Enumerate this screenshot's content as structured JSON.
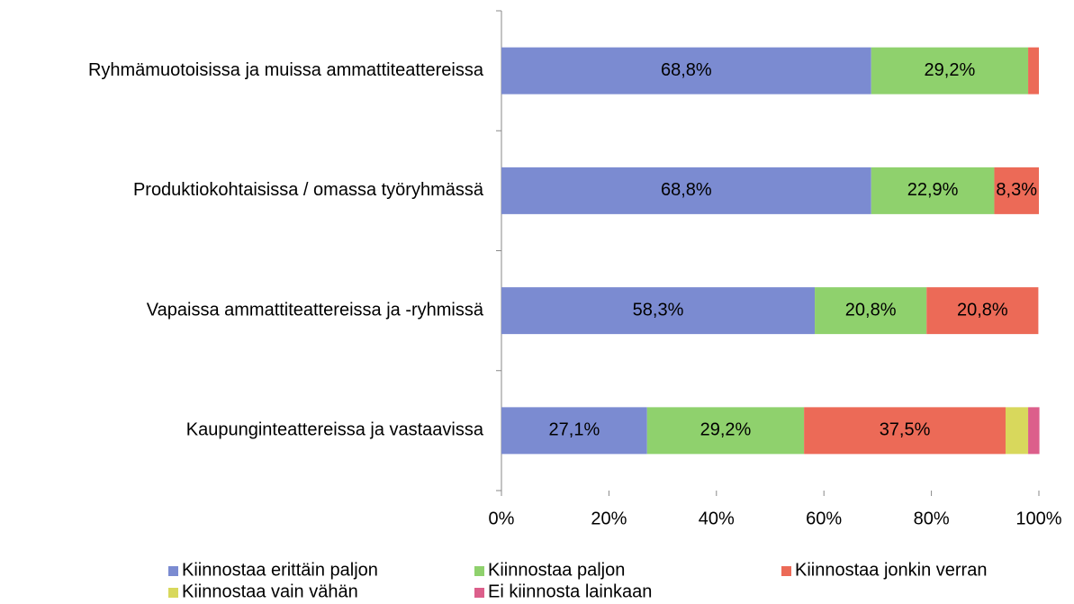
{
  "chart_data": {
    "type": "stacked-bar-horizontal",
    "categories": [
      "Ryhmämuotoisissa ja muissa ammattiteattereissa",
      "Produktiokohtaisissa / omassa työryhmässä",
      "Vapaissa ammattiteattereissa ja -ryhmissä",
      "Kaupunginteattereissa ja vastaavissa"
    ],
    "series": [
      {
        "name": "Kiinnostaa erittäin paljon",
        "color": "#7b8bd1",
        "values": [
          68.8,
          68.8,
          58.3,
          27.1
        ],
        "value_labels": [
          "68,8%",
          "68,8%",
          "58,3%",
          "27,1%"
        ]
      },
      {
        "name": "Kiinnostaa paljon",
        "color": "#8fd16d",
        "values": [
          29.2,
          22.9,
          20.8,
          29.2
        ],
        "value_labels": [
          "29,2%",
          "22,9%",
          "20,8%",
          "29,2%"
        ]
      },
      {
        "name": "Kiinnostaa jonkin verran",
        "color": "#ec6a57",
        "values": [
          2.0,
          8.3,
          20.8,
          37.5
        ],
        "value_labels": [
          null,
          "8,3%",
          "20,8%",
          "37,5%"
        ]
      },
      {
        "name": "Kiinnostaa vain vähän",
        "color": "#d8d85c",
        "values": [
          0,
          0,
          0,
          4.2
        ],
        "value_labels": [
          null,
          null,
          null,
          null
        ]
      },
      {
        "name": "Ei kiinnosta lainkaan",
        "color": "#dc5f8b",
        "values": [
          0,
          0,
          0,
          2.1
        ],
        "value_labels": [
          null,
          null,
          null,
          null
        ]
      }
    ],
    "xlim": [
      0,
      100
    ],
    "xticks": [
      {
        "value": 0,
        "label": "0%"
      },
      {
        "value": 20,
        "label": "20%"
      },
      {
        "value": 40,
        "label": "40%"
      },
      {
        "value": 60,
        "label": "60%"
      },
      {
        "value": 80,
        "label": "80%"
      },
      {
        "value": 100,
        "label": "100%"
      }
    ],
    "legend": "bottom"
  }
}
